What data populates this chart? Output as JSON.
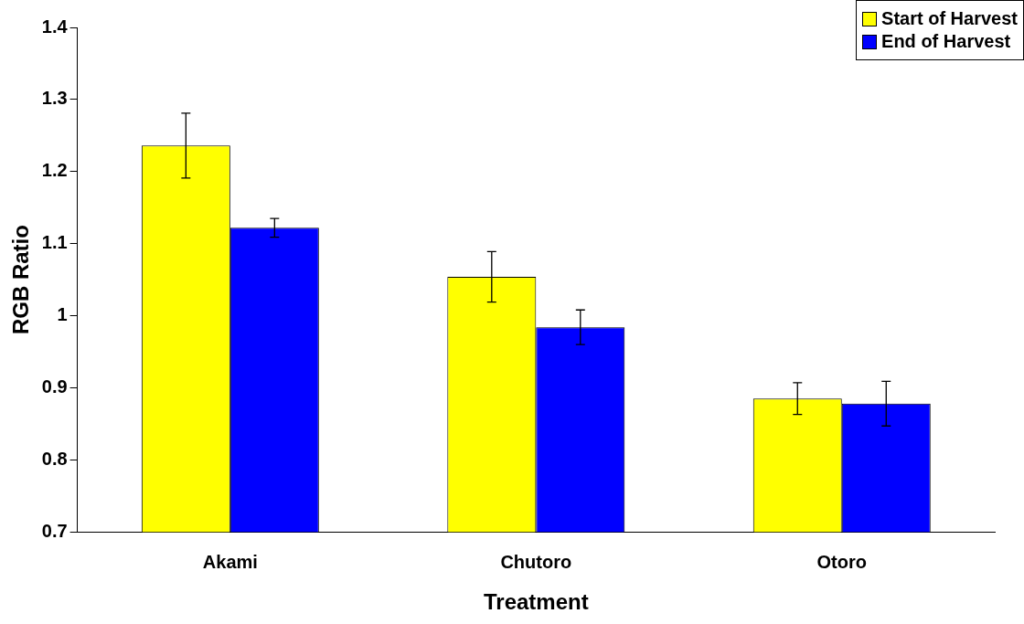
{
  "chart_data": {
    "type": "bar",
    "xlabel": "Treatment",
    "ylabel": "RGB Ratio",
    "categories": [
      "Akami",
      "Chutoro",
      "Otoro"
    ],
    "series": [
      {
        "name": "Start of Harvest",
        "color": "#ffff00",
        "values": [
          1.236,
          1.054,
          0.885
        ],
        "errors": [
          0.045,
          0.035,
          0.022
        ]
      },
      {
        "name": "End of Harvest",
        "color": "#0000ff",
        "values": [
          1.122,
          0.984,
          0.878
        ],
        "errors": [
          0.013,
          0.024,
          0.031
        ]
      }
    ],
    "ylim": [
      0.7,
      1.4
    ],
    "yticks": [
      0.7,
      0.8,
      0.9,
      1,
      1.1,
      1.2,
      1.3,
      1.4
    ],
    "grid": false,
    "legend": "top right"
  }
}
